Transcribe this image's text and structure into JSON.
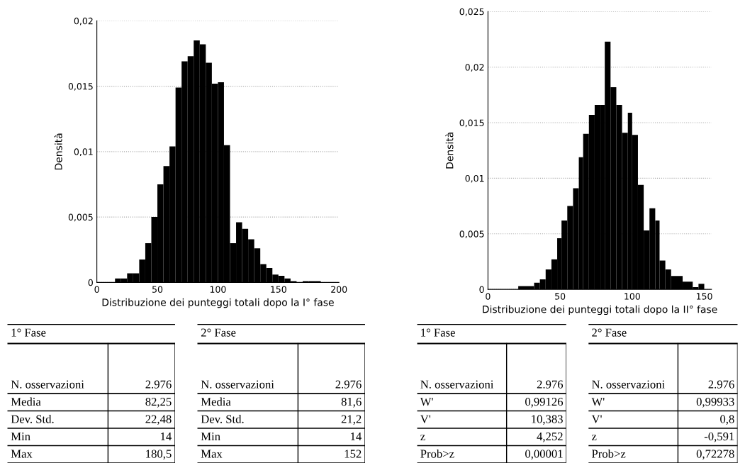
{
  "chart_data": [
    {
      "type": "histogram",
      "xlabel": "Distribuzione dei punteggi totali dopo la I° fase",
      "ylabel": "Densità",
      "color": "#000000",
      "grid": "y",
      "bins": [
        15,
        20,
        25,
        30,
        35,
        40,
        45,
        50,
        55,
        60,
        65,
        70,
        75,
        80,
        85,
        90,
        95,
        100,
        105,
        110,
        115,
        120,
        125,
        130,
        135,
        140,
        145,
        150,
        155,
        160,
        165,
        170,
        175,
        180,
        185
      ],
      "values": [
        0.0003,
        0.0003,
        0.0007,
        0.0007,
        0.00175,
        0.003,
        0.005,
        0.0075,
        0.0089,
        0.0104,
        0.0149,
        0.0169,
        0.0173,
        0.0185,
        0.0182,
        0.0168,
        0.0152,
        0.0153,
        0.0105,
        0.003,
        0.0046,
        0.0041,
        0.0033,
        0.0026,
        0.0014,
        0.0011,
        0.0006,
        0.0005,
        0.0003,
        0.0001,
        0,
        0.0001,
        0.0001,
        0.0001
      ],
      "xlim": [
        0,
        200
      ],
      "xticks": [
        0,
        50,
        100,
        150,
        200
      ],
      "ylim": [
        0,
        0.02
      ],
      "yticks": [
        0,
        {
          "value": 0.005,
          "label": "0,005"
        },
        {
          "value": 0.01,
          "label": "0,01"
        },
        {
          "value": 0.015,
          "label": "0,015"
        },
        {
          "value": 0.02,
          "label": "0,02"
        }
      ]
    },
    {
      "type": "histogram",
      "xlabel": "Distribuzione dei punteggi totali dopo la II° fase",
      "ylabel": "Densità",
      "color": "#000000",
      "grid": "y",
      "bins": [
        21,
        32,
        36,
        40,
        44,
        48,
        51,
        55,
        59,
        63,
        66,
        70,
        74,
        78,
        81,
        85,
        89,
        93,
        97,
        100,
        104,
        108,
        112,
        116,
        119,
        123,
        127,
        135,
        142,
        146,
        150
      ],
      "values": [
        0.0003,
        0.0006,
        0.0009,
        0.0018,
        0.0027,
        0.0046,
        0.0062,
        0.0075,
        0.0091,
        0.0119,
        0.014,
        0.0157,
        0.0166,
        0.0166,
        0.0223,
        0.0182,
        0.0166,
        0.0141,
        0.0159,
        0.0139,
        0.0094,
        0.0053,
        0.0073,
        0.0062,
        0.0026,
        0.0018,
        0.0012,
        0.0007,
        0.0002,
        0.0005
      ],
      "xlim": [
        0,
        155
      ],
      "xticks": [
        0,
        50,
        100,
        150
      ],
      "ylim": [
        0,
        0.025
      ],
      "yticks": [
        0,
        {
          "value": 0.005,
          "label": "0,005"
        },
        {
          "value": 0.01,
          "label": "0,01"
        },
        {
          "value": 0.015,
          "label": "0,015"
        },
        {
          "value": 0.02,
          "label": "0,02"
        },
        {
          "value": 0.025,
          "label": "0,025"
        }
      ]
    },
    {
      "type": "other",
      "title": "1° Fase",
      "annotations": [
        "N. osservazioni",
        "2.976",
        "Media",
        "82,25",
        "Dev. Std.",
        "22,48",
        "Min",
        "14",
        "Max",
        "180,5"
      ]
    },
    {
      "type": "other",
      "title": "2° Fase",
      "annotations": [
        "N. osservazioni",
        "2.976",
        "Media",
        "81,6",
        "Dev. Std.",
        "21,2",
        "Min",
        "14",
        "Max",
        "152"
      ]
    },
    {
      "type": "other",
      "title": "1° Fase",
      "annotations": [
        "N. osservazioni",
        "2.976",
        "W'",
        "0,99126",
        "V'",
        "10,383",
        "z",
        "4,252",
        "Prob>z",
        "0,00001"
      ]
    },
    {
      "type": "other",
      "title": "2° Fase",
      "annotations": [
        "N. osservazioni",
        "2.976",
        "W'",
        "0,99933",
        "V'",
        "0,8",
        "z",
        "-0,591",
        "Prob>z",
        "0,72278"
      ]
    }
  ]
}
